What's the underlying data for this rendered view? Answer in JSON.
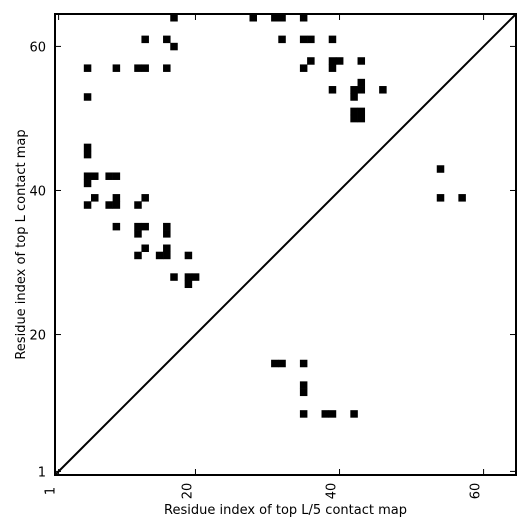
{
  "chart_data": {
    "type": "heatmap",
    "title": "",
    "xlabel": "Residue index of top L/5 contact map",
    "ylabel": "Residue index of top L contact map",
    "xlim": [
      0.5,
      64.5
    ],
    "ylim": [
      0.5,
      64.5
    ],
    "x_ticks": [
      1,
      20,
      40,
      60
    ],
    "y_ticks": [
      1,
      20,
      40,
      60
    ],
    "x_tick_labels": [
      "1",
      "20",
      "40",
      "60"
    ],
    "y_tick_labels": [
      "1",
      "20",
      "40",
      "60"
    ],
    "x_tick_rotation": -90,
    "diagonal": true,
    "cell_color": "#000000",
    "cells_upper": [
      [
        17,
        64
      ],
      [
        28,
        64
      ],
      [
        31,
        64
      ],
      [
        32,
        64
      ],
      [
        35,
        64
      ],
      [
        13,
        61
      ],
      [
        16,
        61
      ],
      [
        32,
        61
      ],
      [
        35,
        61
      ],
      [
        36,
        61
      ],
      [
        39,
        61
      ],
      [
        17,
        60
      ],
      [
        40,
        58
      ],
      [
        43,
        58
      ],
      [
        36,
        58
      ],
      [
        39,
        58
      ],
      [
        5,
        57
      ],
      [
        9,
        57
      ],
      [
        12,
        57
      ],
      [
        13,
        57
      ],
      [
        16,
        57
      ],
      [
        35,
        57
      ],
      [
        39,
        57
      ],
      [
        43,
        55
      ],
      [
        39,
        54
      ],
      [
        42,
        54
      ],
      [
        43,
        54
      ],
      [
        46,
        54
      ],
      [
        5,
        53
      ],
      [
        42,
        53
      ],
      [
        42,
        51
      ],
      [
        43,
        51
      ],
      [
        42,
        50
      ],
      [
        43,
        50
      ],
      [
        5,
        46
      ],
      [
        5,
        45
      ],
      [
        5,
        42
      ],
      [
        6,
        42
      ],
      [
        8,
        42
      ],
      [
        9,
        42
      ],
      [
        5,
        41
      ],
      [
        6,
        39
      ],
      [
        9,
        39
      ],
      [
        13,
        39
      ],
      [
        5,
        38
      ],
      [
        8,
        38
      ],
      [
        9,
        38
      ],
      [
        12,
        38
      ],
      [
        9,
        35
      ],
      [
        12,
        35
      ],
      [
        13,
        35
      ],
      [
        16,
        35
      ],
      [
        12,
        34
      ],
      [
        16,
        34
      ],
      [
        13,
        32
      ],
      [
        16,
        32
      ],
      [
        12,
        31
      ],
      [
        15,
        31
      ],
      [
        16,
        31
      ],
      [
        19,
        31
      ],
      [
        17,
        28
      ],
      [
        19,
        28
      ],
      [
        20,
        28
      ],
      [
        19,
        27
      ]
    ],
    "cells_lower": [
      [
        54,
        43
      ],
      [
        54,
        39
      ],
      [
        57,
        39
      ],
      [
        31,
        16
      ],
      [
        32,
        16
      ],
      [
        35,
        16
      ],
      [
        35,
        13
      ],
      [
        35,
        12
      ],
      [
        35,
        9
      ],
      [
        38,
        9
      ],
      [
        39,
        9
      ],
      [
        42,
        9
      ]
    ]
  }
}
